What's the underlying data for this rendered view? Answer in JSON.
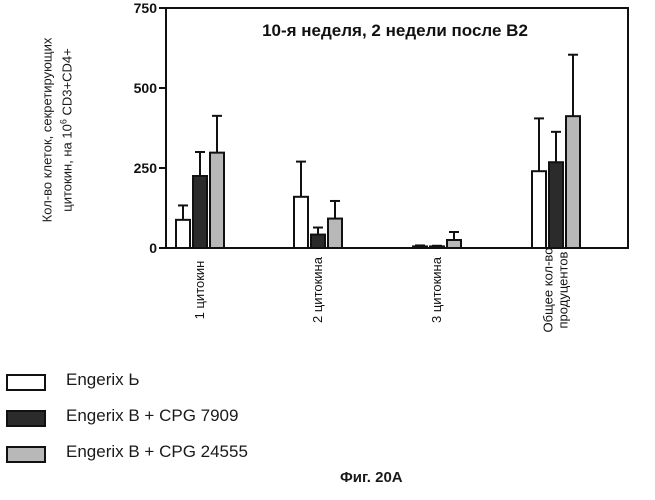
{
  "chart_data": {
    "type": "bar",
    "title": "10-я неделя, 2 недели после В2",
    "ylabel_line1": "Кол-во клеток, секретирующих",
    "ylabel_line2_pre": "цитокин, на 10",
    "ylabel_line2_sup": "6",
    "ylabel_line2_post": " CD3+CD4+",
    "xlabel": "",
    "ylim": [
      0,
      750
    ],
    "yticks": [
      0,
      250,
      500,
      750
    ],
    "ytick_labels": [
      "0",
      "250",
      "500",
      "750"
    ],
    "categories": [
      "1 цитокин",
      "2 цитокина",
      "3 цитокина",
      "Общее кол-во продуцентов"
    ],
    "series": [
      {
        "name": "Engerix Ь",
        "color": "#ffffff",
        "values": [
          88,
          160,
          5,
          240
        ],
        "errors": [
          45,
          110,
          3,
          165
        ]
      },
      {
        "name": "Engerix B + CPG 7909",
        "color": "#2b2b2b",
        "values": [
          225,
          42,
          5,
          268
        ],
        "errors": [
          75,
          22,
          2,
          95
        ]
      },
      {
        "name": "Engerix B + CPG 24555",
        "color": "#b8b8b8",
        "values": [
          298,
          92,
          25,
          412
        ],
        "errors": [
          115,
          55,
          25,
          192
        ]
      }
    ],
    "grid": false,
    "legend": "bottom-left"
  },
  "caption": "Фиг. 20А"
}
